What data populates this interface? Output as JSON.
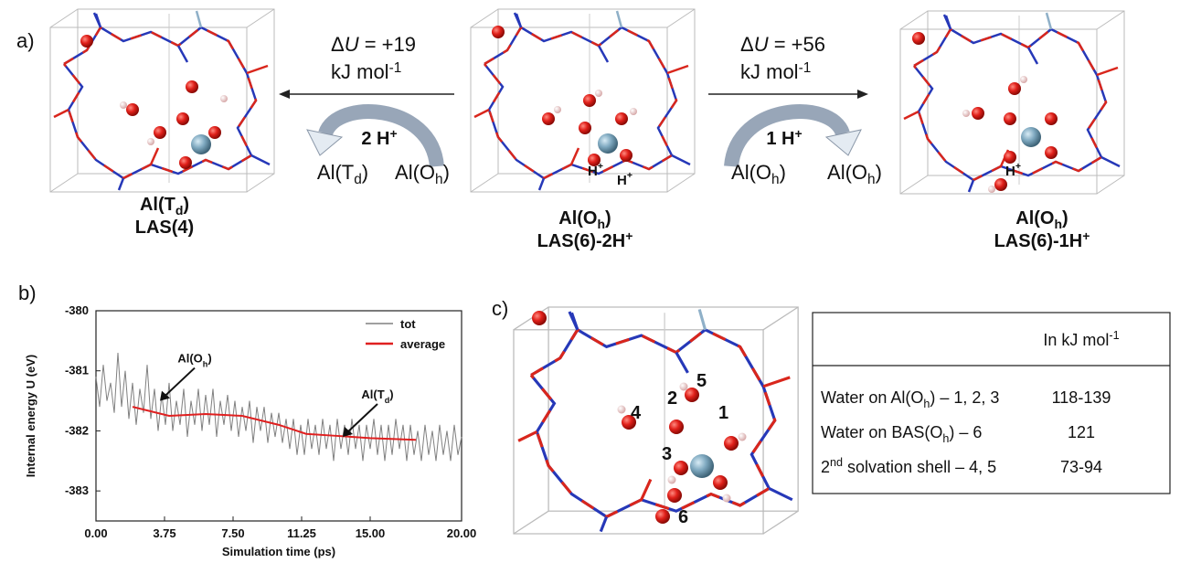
{
  "panel_a": {
    "label": "a)",
    "left_reaction": {
      "energy": {
        "t": "Δ",
        "it": "U",
        "t2": " = +19"
      },
      "unit": {
        "t": "kJ mol",
        "sup": "-1"
      },
      "protons": {
        "t": "2 H",
        "sup": "+"
      },
      "left_state": {
        "t": "Al(T",
        "sub": "d",
        "t2": ")"
      },
      "right_state": {
        "t": "Al(O",
        "sub": "h",
        "t2": ")"
      }
    },
    "right_reaction": {
      "energy": {
        "t": "Δ",
        "it": "U",
        "t2": " = +56"
      },
      "unit": {
        "t": "kJ mol",
        "sup": "-1"
      },
      "protons": {
        "t": "1 H",
        "sup": "+"
      },
      "left_state": {
        "t": "Al(O",
        "sub": "h",
        "t2": ")"
      },
      "right_state": {
        "t": "Al(O",
        "sub": "h",
        "t2": ")"
      }
    },
    "structures": [
      {
        "name": {
          "t": "Al(T",
          "sub": "d",
          "t2": ")"
        },
        "site": "LAS(4)"
      },
      {
        "name": {
          "t": "Al(O",
          "sub": "h",
          "t2": ")"
        },
        "site": {
          "t": "LAS(6)-2H",
          "sup": "+"
        },
        "proton_labels": [
          {
            "t": "H",
            "sup": "+"
          },
          {
            "t": "H",
            "sup": "+"
          }
        ]
      },
      {
        "name": {
          "t": "Al(O",
          "sub": "h",
          "t2": ")"
        },
        "site": {
          "t": "LAS(6)-1H",
          "sup": "+"
        },
        "proton_labels": [
          {
            "t": "H",
            "sup": "+"
          }
        ]
      }
    ]
  },
  "chart_data": {
    "type": "line",
    "panel_label": "b)",
    "x_label": "Simulation time (ps)",
    "y_label": "Internal energy U (eV)",
    "xlim": [
      0,
      20
    ],
    "ylim": [
      -383.5,
      -380
    ],
    "xticks": [
      {
        "value": 0,
        "label": "0.00"
      },
      3.75,
      {
        "value": 7.5,
        "label": "7.50"
      },
      11.25,
      {
        "value": 15,
        "label": "15.00"
      },
      {
        "value": 20,
        "label": "20.00"
      }
    ],
    "yticks": [
      -383,
      -382,
      -381,
      -380
    ],
    "legend": "upper right",
    "series": [
      {
        "name": "tot",
        "color": "#808080",
        "x": [
          0,
          0.2,
          0.4,
          0.6,
          0.8,
          1,
          1.2,
          1.4,
          1.6,
          1.8,
          2,
          2.2,
          2.4,
          2.6,
          2.8,
          3,
          3.2,
          3.4,
          3.6,
          3.8,
          4,
          4.2,
          4.4,
          4.6,
          4.8,
          5,
          5.2,
          5.4,
          5.6,
          5.8,
          6,
          6.2,
          6.4,
          6.6,
          6.8,
          7,
          7.2,
          7.4,
          7.6,
          7.8,
          8,
          8.2,
          8.4,
          8.6,
          8.8,
          9,
          9.2,
          9.4,
          9.6,
          9.8,
          10,
          10.2,
          10.4,
          10.6,
          10.8,
          11,
          11.2,
          11.4,
          11.6,
          11.8,
          12,
          12.2,
          12.4,
          12.6,
          12.8,
          13,
          13.2,
          13.4,
          13.6,
          13.8,
          14,
          14.2,
          14.4,
          14.6,
          14.8,
          15,
          15.2,
          15.4,
          15.6,
          15.8,
          16,
          16.2,
          16.4,
          16.6,
          16.8,
          17,
          17.2,
          17.4,
          17.6,
          17.8,
          18,
          18.2,
          18.4,
          18.6,
          18.8,
          19,
          19.2,
          19.4,
          19.6,
          19.8,
          20
        ],
        "values": [
          -381.1,
          -381.6,
          -380.9,
          -381.5,
          -381.2,
          -381.7,
          -380.7,
          -381.6,
          -381.0,
          -381.8,
          -381.2,
          -381.9,
          -381.3,
          -381.7,
          -380.9,
          -381.8,
          -381.3,
          -382.0,
          -381.4,
          -381.9,
          -381.2,
          -382.0,
          -381.5,
          -381.9,
          -381.3,
          -382.1,
          -381.5,
          -381.9,
          -381.3,
          -382.0,
          -381.4,
          -381.9,
          -381.3,
          -382.1,
          -381.5,
          -381.9,
          -381.4,
          -382.0,
          -381.5,
          -382.1,
          -381.6,
          -382.0,
          -381.5,
          -382.2,
          -381.6,
          -382.0,
          -381.6,
          -382.2,
          -381.7,
          -382.1,
          -381.7,
          -382.2,
          -381.8,
          -382.3,
          -381.8,
          -382.4,
          -381.9,
          -382.4,
          -381.8,
          -382.3,
          -381.9,
          -382.4,
          -381.8,
          -382.3,
          -381.9,
          -382.5,
          -381.8,
          -382.3,
          -381.9,
          -382.4,
          -381.8,
          -382.3,
          -381.9,
          -382.5,
          -381.9,
          -382.3,
          -381.8,
          -382.4,
          -381.9,
          -382.5,
          -381.9,
          -382.4,
          -381.8,
          -382.3,
          -381.9,
          -382.5,
          -381.9,
          -382.4,
          -382.0,
          -382.5,
          -381.9,
          -382.4,
          -382.0,
          -382.5,
          -381.9,
          -382.4,
          -382.0,
          -382.5,
          -381.9,
          -382.4,
          -382.1
        ]
      },
      {
        "name": "average",
        "color": "#e02020",
        "x": [
          2,
          4,
          6,
          8,
          10,
          11.5,
          13,
          15,
          17.5
        ],
        "values": [
          -381.6,
          -381.75,
          -381.72,
          -381.75,
          -381.9,
          -382.05,
          -382.08,
          -382.12,
          -382.15
        ]
      }
    ],
    "annotations": [
      {
        "text": {
          "t": "Al(O",
          "sub": "h",
          "t2": ")"
        },
        "x": 3.5,
        "y": -381.5
      },
      {
        "text": {
          "t": "Al(T",
          "sub": "d",
          "t2": ")"
        },
        "x": 13.5,
        "y": -382.1
      }
    ]
  },
  "panel_c": {
    "label": "c)",
    "site_numbers": [
      "1",
      "2",
      "3",
      "4",
      "5",
      "6"
    ],
    "table": {
      "header": {
        "t": "In kJ mol",
        "sup": "-1"
      },
      "rows": [
        [
          {
            "t": "Water on Al(O",
            "sub": "h",
            "t2": ") – 1, 2, 3"
          },
          "118-139"
        ],
        [
          {
            "t": "Water on BAS(O",
            "sub": "h",
            "t2": ") – 6"
          },
          "121"
        ],
        [
          {
            "t": "2",
            "sup": "nd",
            "t2": " solvation shell – 4, 5"
          },
          "73-94"
        ]
      ]
    }
  }
}
